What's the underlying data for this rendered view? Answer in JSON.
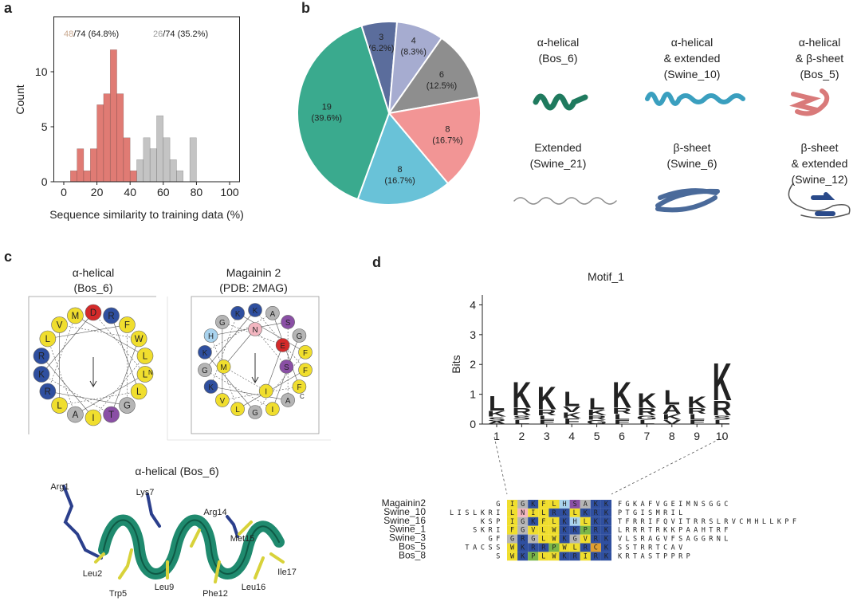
{
  "panel_labels": [
    "a",
    "b",
    "c",
    "d"
  ],
  "residue_colors": {
    "K": "#2f4f9f",
    "R": "#2f4f9f",
    "H": "#a9d3ee",
    "L": "#f0de2e",
    "I": "#f0de2e",
    "V": "#f0de2e",
    "F": "#f0de2e",
    "M": "#f0de2e",
    "W": "#f0de2e",
    "Y": "#f0de2e",
    "A": "#b5b5b5",
    "G": "#b5b5b5",
    "P": "#7ab648",
    "S": "#8a4fa5",
    "T": "#8a4fa5",
    "D": "#d42a2a",
    "E": "#d42a2a",
    "N": "#f2b6c0",
    "Q": "#f2b6c0",
    "C": "#e0a030"
  },
  "chart_data": [
    {
      "type": "histogram",
      "xlabel": "Sequence similarity to training data (%)",
      "ylabel": "Count",
      "bins": [
        4,
        8,
        12,
        16,
        20,
        24,
        28,
        32,
        36,
        40,
        44,
        48,
        52,
        56,
        60,
        64,
        68,
        72,
        76,
        80
      ],
      "values": [
        1,
        3,
        1,
        3,
        7,
        8,
        12,
        8,
        4,
        1,
        2,
        4,
        3,
        6,
        4,
        2,
        1,
        0,
        4
      ],
      "bar_colors": [
        "#e07b74",
        "#e07b74",
        "#e07b74",
        "#e07b74",
        "#e07b74",
        "#e07b74",
        "#e07b74",
        "#e07b74",
        "#e07b74",
        "#e07b74",
        "#c4c4c4",
        "#c4c4c4",
        "#c4c4c4",
        "#c4c4c4",
        "#c4c4c4",
        "#c4c4c4",
        "#c4c4c4",
        "#c4c4c4",
        "#c4c4c4"
      ],
      "xlim": [
        -6,
        106
      ],
      "ylim": [
        0,
        15
      ],
      "xticks": [
        0,
        20,
        40,
        60,
        80,
        100
      ],
      "yticks": [
        0,
        5,
        10
      ],
      "annotations": [
        {
          "highlight": "48",
          "text": "/74 (64.8%)",
          "color": "#c9a88f"
        },
        {
          "highlight": "26",
          "text": "/74 (35.2%)",
          "color": "#9a9a9a"
        }
      ]
    },
    {
      "type": "pie",
      "values": [
        3,
        4,
        6,
        8,
        8,
        19
      ],
      "percent_labels": [
        "(6.2%)",
        "(8.3%)",
        "(12.5%)",
        "(16.7%)",
        "(16.7%)",
        "(39.6%)"
      ],
      "colors": [
        "#5b6d9c",
        "#a6acd0",
        "#8e8e8e",
        "#f29595",
        "#69c2d8",
        "#3aaa8e"
      ]
    },
    {
      "type": "logo",
      "title": "Motif_1",
      "ylabel": "Bits",
      "ylim": [
        0,
        4.2
      ],
      "yticks": [
        0,
        1,
        2,
        3,
        4
      ],
      "categories": [
        1,
        2,
        3,
        4,
        5,
        6,
        7,
        8,
        9,
        10
      ],
      "stacks": [
        [
          {
            "letter": "A",
            "bits": 0.1
          },
          {
            "letter": "S",
            "bits": 0.15
          },
          {
            "letter": "K",
            "bits": 0.2
          },
          {
            "letter": "L",
            "bits": 0.5
          }
        ],
        [
          {
            "letter": "L",
            "bits": 0.15
          },
          {
            "letter": "S",
            "bits": 0.15
          },
          {
            "letter": "R",
            "bits": 0.25
          },
          {
            "letter": "K",
            "bits": 0.9
          }
        ],
        [
          {
            "letter": "F",
            "bits": 0.15
          },
          {
            "letter": "L",
            "bits": 0.15
          },
          {
            "letter": "R",
            "bits": 0.2
          },
          {
            "letter": "K",
            "bits": 0.8
          }
        ],
        [
          {
            "letter": "F",
            "bits": 0.2
          },
          {
            "letter": "K",
            "bits": 0.2
          },
          {
            "letter": "V",
            "bits": 0.2
          },
          {
            "letter": "L",
            "bits": 0.5
          }
        ],
        [
          {
            "letter": "G",
            "bits": 0.15
          },
          {
            "letter": "R",
            "bits": 0.15
          },
          {
            "letter": "K",
            "bits": 0.2
          },
          {
            "letter": "L",
            "bits": 0.4
          }
        ],
        [
          {
            "letter": "F",
            "bits": 0.15
          },
          {
            "letter": "L",
            "bits": 0.2
          },
          {
            "letter": "R",
            "bits": 0.2
          },
          {
            "letter": "K",
            "bits": 0.9
          }
        ],
        [
          {
            "letter": "L",
            "bits": 0.15
          },
          {
            "letter": "G",
            "bits": 0.15
          },
          {
            "letter": "R",
            "bits": 0.25
          },
          {
            "letter": "K",
            "bits": 0.5
          }
        ],
        [
          {
            "letter": "V",
            "bits": 0.15
          },
          {
            "letter": "K",
            "bits": 0.2
          },
          {
            "letter": "A",
            "bits": 0.3
          },
          {
            "letter": "L",
            "bits": 0.5
          }
        ],
        [
          {
            "letter": "F",
            "bits": 0.15
          },
          {
            "letter": "L",
            "bits": 0.2
          },
          {
            "letter": "R",
            "bits": 0.2
          },
          {
            "letter": "K",
            "bits": 0.4
          }
        ],
        [
          {
            "letter": "L",
            "bits": 0.15
          },
          {
            "letter": "S",
            "bits": 0.15
          },
          {
            "letter": "R",
            "bits": 0.5
          },
          {
            "letter": "K",
            "bits": 1.3
          }
        ]
      ]
    }
  ],
  "structures": [
    {
      "lines": [
        "α-helical",
        "(Bos_6)"
      ]
    },
    {
      "lines": [
        "α-helical",
        "& extended",
        "(Swine_10)"
      ]
    },
    {
      "lines": [
        "α-helical",
        "& β-sheet",
        "(Bos_5)"
      ]
    },
    {
      "lines": [
        "Extended",
        "(Swine_21)"
      ]
    },
    {
      "lines": [
        "β-sheet",
        "(Swine_6)"
      ]
    },
    {
      "lines": [
        "β-sheet",
        "& extended",
        "(Swine_12)"
      ]
    }
  ],
  "helical_wheels": [
    {
      "title": [
        "α-helical",
        "(Bos_6)"
      ],
      "terminus": "N",
      "sequence": [
        "R",
        "L",
        "L",
        "V",
        "W",
        "T",
        "K",
        "D",
        "L",
        "A",
        "L",
        "F",
        "G",
        "R",
        "M",
        "L",
        "I",
        "R"
      ]
    },
    {
      "title": [
        "Magainin 2",
        "(PDB: 2MAG)"
      ],
      "terminus": "C",
      "sequence": [
        "G",
        "I",
        "G",
        "K",
        "F",
        "L",
        "H",
        "S",
        "A",
        "K",
        "K",
        "F",
        "G",
        "K",
        "A",
        "F",
        "V",
        "G",
        "E",
        "I",
        "M",
        "N",
        "S"
      ]
    }
  ],
  "helix_model": {
    "title": "α-helical (Bos_6)",
    "residues": [
      {
        "label": "Arg1",
        "color": "#2b3f8c"
      },
      {
        "label": "Lys7",
        "color": "#2b3f8c"
      },
      {
        "label": "Arg14",
        "color": "#2b3f8c"
      },
      {
        "label": "Met15",
        "color": "#b8b432"
      },
      {
        "label": "Leu2",
        "color": "#b8b432"
      },
      {
        "label": "Trp5",
        "color": "#b8b432"
      },
      {
        "label": "Leu9",
        "color": "#b8b432"
      },
      {
        "label": "Phe12",
        "color": "#b8b432"
      },
      {
        "label": "Leu16",
        "color": "#b8b432"
      },
      {
        "label": "Ile17",
        "color": "#b8b432"
      }
    ]
  },
  "alignment": {
    "rows": [
      {
        "name": "Magainin2",
        "prefix": "G",
        "motif": [
          "I",
          "G",
          "K",
          "F",
          "L",
          "H",
          "S",
          "A",
          "K",
          "K"
        ],
        "suffix": "FGKAFVGEIMNSGGC"
      },
      {
        "name": "Swine_10",
        "prefix": "LISLKRI",
        "motif": [
          "L",
          "N",
          "I",
          "L",
          "R",
          "K",
          "L",
          "K",
          "R",
          "K"
        ],
        "suffix": "PTGISMRIL"
      },
      {
        "name": "Swine_16",
        "prefix": "KSP",
        "motif": [
          "I",
          "G",
          "K",
          "F",
          "L",
          "K",
          "H",
          "L",
          "K",
          "K"
        ],
        "suffix": "TFRRIFQVITRRSLRVCMHLLKPF"
      },
      {
        "name": "Swine_1",
        "prefix": "SKRI",
        "motif": [
          "F",
          "G",
          "V",
          "L",
          "W",
          "K",
          "K",
          "P",
          "R",
          "K"
        ],
        "suffix": "LRRRTRKKPAAHTRF"
      },
      {
        "name": "Swine_3",
        "prefix": "GF",
        "motif": [
          "G",
          "R",
          "G",
          "L",
          "W",
          "K",
          "G",
          "V",
          "R",
          "K"
        ],
        "suffix": "VLSRAGVFSAGGRNL"
      },
      {
        "name": "Bos_5",
        "prefix": "TACSS",
        "motif": [
          "W",
          "K",
          "R",
          "R",
          "P",
          "W",
          "L",
          "R",
          "C",
          "K"
        ],
        "suffix": "SSTRRTCAV"
      },
      {
        "name": "Bos_8",
        "prefix": "S",
        "motif": [
          "W",
          "K",
          "P",
          "L",
          "W",
          "K",
          "R",
          "I",
          "R",
          "K"
        ],
        "suffix": "KRTASTPPRP"
      }
    ]
  }
}
